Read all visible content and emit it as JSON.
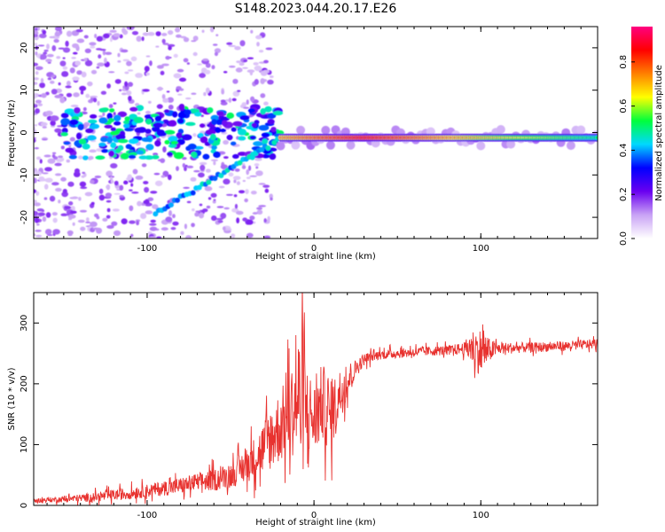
{
  "figure_title": "S148.2023.044.20.17.E26",
  "colors": {
    "snr_line": "#e8322f",
    "axes": "#000000"
  },
  "chart_data": [
    {
      "type": "heatmap",
      "name": "spectrogram",
      "xlabel": "Height of straight line (km)",
      "ylabel": "Frequency (Hz)",
      "xlim": [
        -168,
        170
      ],
      "ylim": [
        -25,
        25
      ],
      "xticks": [
        -100,
        0,
        100
      ],
      "yticks": [
        -20,
        -10,
        0,
        10,
        20
      ],
      "colorbar": {
        "label": "Normalized spectral amplitude",
        "range": [
          0,
          0.96
        ],
        "ticks": [
          0.0,
          0.2,
          0.4,
          0.6,
          0.8
        ],
        "colormap": [
          "#ffffff",
          "#c9a3f5",
          "#6a00f0",
          "#0000ff",
          "#00d8ff",
          "#00ff3c",
          "#ffff00",
          "#ff8000",
          "#ff0000",
          "#ff0080"
        ]
      },
      "features": [
        {
          "label": "main carrier line",
          "x_range": [
            -20,
            170
          ],
          "freq_hz": -1.2,
          "amplitude": 0.9
        },
        {
          "label": "mirror line",
          "x_range": [
            -95,
            -20
          ],
          "freq_start": -19,
          "freq_end": -1.5,
          "amplitude": 0.35
        },
        {
          "label": "scattered low-altitude energy",
          "x_range": [
            -168,
            -25
          ],
          "freq_range": [
            -25,
            25
          ],
          "amplitude": 0.15
        }
      ]
    },
    {
      "type": "line",
      "name": "snr",
      "xlabel": "Height of straight line (km)",
      "ylabel": "SNR (10 * v/v)",
      "xlim": [
        -168,
        170
      ],
      "ylim": [
        0,
        350
      ],
      "xticks": [
        -100,
        0,
        100
      ],
      "yticks": [
        0,
        100,
        200,
        300
      ],
      "series": [
        {
          "name": "SNR",
          "x": [
            -168,
            -150,
            -130,
            -110,
            -90,
            -80,
            -70,
            -60,
            -50,
            -45,
            -40,
            -35,
            -30,
            -25,
            -20,
            -15,
            -10,
            -8,
            -5,
            0,
            5,
            10,
            15,
            20,
            25,
            30,
            35,
            40,
            50,
            60,
            70,
            80,
            90,
            95,
            100,
            105,
            110,
            130,
            150,
            170
          ],
          "y": [
            8,
            10,
            14,
            20,
            28,
            32,
            38,
            42,
            50,
            58,
            68,
            80,
            95,
            115,
            130,
            150,
            170,
            176,
            160,
            140,
            170,
            145,
            180,
            205,
            225,
            240,
            245,
            248,
            250,
            252,
            254,
            255,
            258,
            260,
            252,
            255,
            258,
            260,
            262,
            266
          ],
          "noise": [
            3,
            5,
            8,
            10,
            12,
            14,
            15,
            18,
            20,
            25,
            30,
            35,
            45,
            55,
            60,
            70,
            90,
            150,
            80,
            60,
            65,
            60,
            45,
            30,
            15,
            10,
            8,
            8,
            8,
            8,
            8,
            8,
            10,
            30,
            40,
            20,
            10,
            8,
            8,
            8
          ]
        }
      ]
    }
  ]
}
